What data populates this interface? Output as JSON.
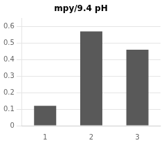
{
  "chart_data": {
    "type": "bar",
    "title": "mpy/9.4 pH",
    "categories": [
      "1",
      "2",
      "3"
    ],
    "values": [
      0.12,
      0.57,
      0.46
    ],
    "color": "#595959",
    "ylim": [
      0,
      0.65
    ],
    "yticks": [
      0,
      0.1,
      0.2,
      0.3,
      0.4,
      0.5,
      0.6
    ],
    "grid": true
  }
}
